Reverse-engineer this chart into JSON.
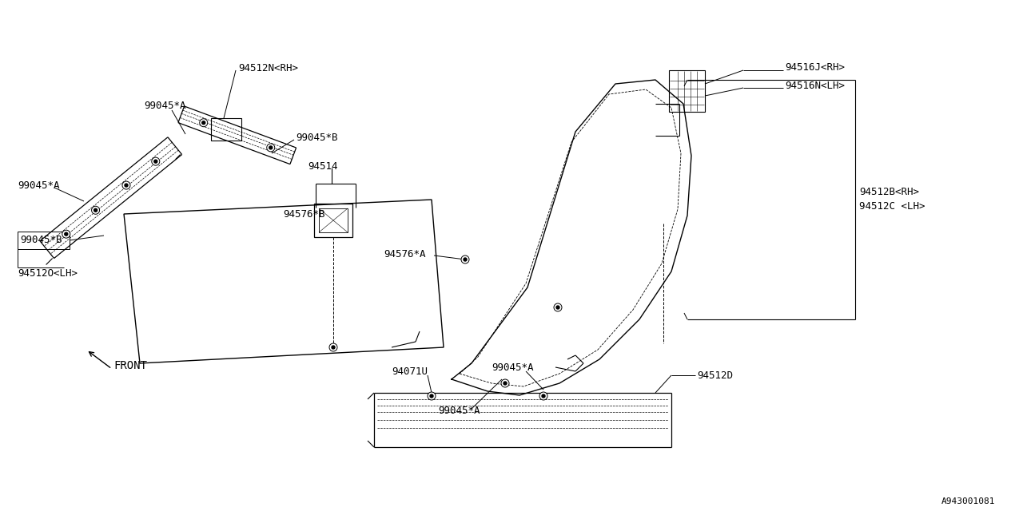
{
  "bg_color": "#ffffff",
  "fig_width": 12.8,
  "fig_height": 6.4,
  "part_number": "A943001081",
  "font_size": 9,
  "labels": {
    "99045A_1": "99045*A",
    "99045A_2": "99045*A",
    "99045A_3": "99045*A",
    "99045A_4": "99045*A",
    "99045B_1": "99045*B",
    "99045B_2": "99045*B",
    "94512N_RH": "94512N<RH>",
    "94512O_LH": "94512O<LH>",
    "94514": "94514",
    "94576B": "94576*B",
    "94576A": "94576*A",
    "94516J_RH": "94516J<RH>",
    "94516N_LH": "94516N<LH>",
    "94512B_RH": "94512B<RH>",
    "94512C_LH": "94512C <LH>",
    "94071U": "94071U",
    "94512D": "94512D",
    "front": "FRONT"
  }
}
